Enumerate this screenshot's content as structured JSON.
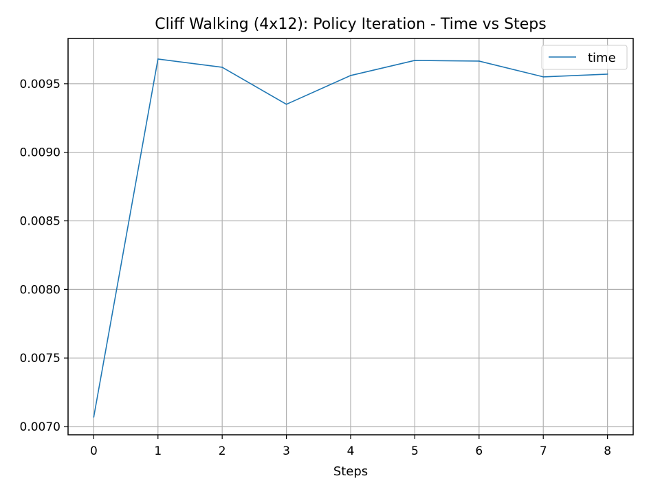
{
  "chart_data": {
    "type": "line",
    "title": "Cliff Walking (4x12): Policy Iteration - Time vs Steps",
    "xlabel": "Steps",
    "ylabel": "",
    "x": [
      0,
      1,
      2,
      3,
      4,
      5,
      6,
      7,
      8
    ],
    "series": [
      {
        "name": "time",
        "color": "#1f77b4",
        "values": [
          0.00707,
          0.00968,
          0.00962,
          0.00935,
          0.00956,
          0.00967,
          0.009665,
          0.00955,
          0.00957
        ]
      }
    ],
    "xlim": [
      -0.4,
      8.4
    ],
    "ylim": [
      0.00694,
      0.00983
    ],
    "xticks": [
      0,
      1,
      2,
      3,
      4,
      5,
      6,
      7,
      8
    ],
    "xtick_labels": [
      "0",
      "1",
      "2",
      "3",
      "4",
      "5",
      "6",
      "7",
      "8"
    ],
    "yticks": [
      0.007,
      0.0075,
      0.008,
      0.0085,
      0.009,
      0.0095
    ],
    "ytick_labels": [
      "0.0070",
      "0.0075",
      "0.0080",
      "0.0085",
      "0.0090",
      "0.0095"
    ],
    "grid": true,
    "legend_position": "top-right"
  }
}
